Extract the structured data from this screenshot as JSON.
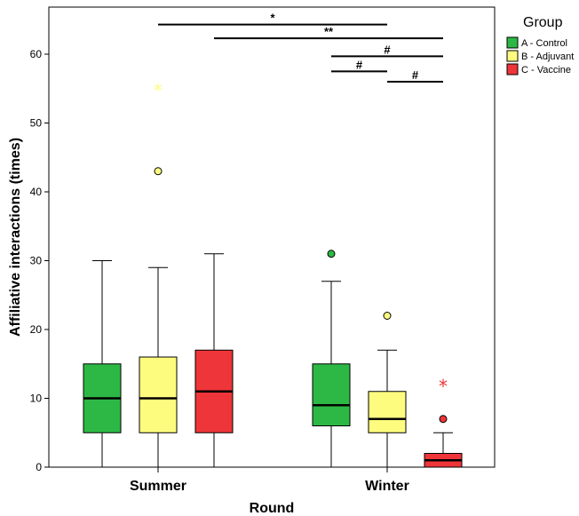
{
  "chart_data": {
    "type": "boxplot",
    "xlabel": "Round",
    "ylabel": "Affiliative interactions (times)",
    "ylim": [
      0,
      66
    ],
    "yticks": [
      0,
      10,
      20,
      30,
      40,
      50,
      60
    ],
    "categories": [
      "Summer",
      "Winter"
    ],
    "legend": {
      "title": "Group",
      "placement": "top-right-outside"
    },
    "series": [
      {
        "name": "A - Control",
        "color": "#2db845",
        "boxes": [
          {
            "category": "Summer",
            "min": 0,
            "q1": 5,
            "median": 10,
            "q3": 15,
            "max": 30,
            "outliers": [],
            "extremes": []
          },
          {
            "category": "Winter",
            "min": 0,
            "q1": 6,
            "median": 9,
            "q3": 15,
            "max": 27,
            "outliers": [
              31
            ],
            "extremes": []
          }
        ]
      },
      {
        "name": "B - Adjuvant",
        "color": "#fefc7f",
        "boxes": [
          {
            "category": "Summer",
            "min": 0,
            "q1": 5,
            "median": 10,
            "q3": 16,
            "max": 29,
            "outliers": [
              43
            ],
            "extremes": [
              55
            ]
          },
          {
            "category": "Winter",
            "min": 0,
            "q1": 5,
            "median": 7,
            "q3": 11,
            "max": 17,
            "outliers": [
              22
            ],
            "extremes": []
          }
        ]
      },
      {
        "name": "C - Vaccine",
        "color": "#ee3539",
        "boxes": [
          {
            "category": "Summer",
            "min": 0,
            "q1": 5,
            "median": 11,
            "q3": 17,
            "max": 31,
            "outliers": [],
            "extremes": []
          },
          {
            "category": "Winter",
            "min": 0,
            "q1": 0,
            "median": 1,
            "q3": 2,
            "max": 5,
            "outliers": [
              7
            ],
            "extremes": [
              12
            ]
          }
        ]
      }
    ],
    "significance": [
      {
        "from": "Summer|B - Adjuvant",
        "to": "Winter|B - Adjuvant",
        "y": 64.3,
        "label": "*"
      },
      {
        "from": "Summer|C - Vaccine",
        "to": "Winter|C - Vaccine",
        "y": 62.3,
        "label": "**"
      },
      {
        "from": "Winter|A - Control",
        "to": "Winter|C - Vaccine",
        "y": 59.7,
        "label": "#"
      },
      {
        "from": "Winter|A - Control",
        "to": "Winter|B - Adjuvant",
        "y": 57.5,
        "label": "#"
      },
      {
        "from": "Winter|B - Adjuvant",
        "to": "Winter|C - Vaccine",
        "y": 56.0,
        "label": "#"
      }
    ]
  }
}
